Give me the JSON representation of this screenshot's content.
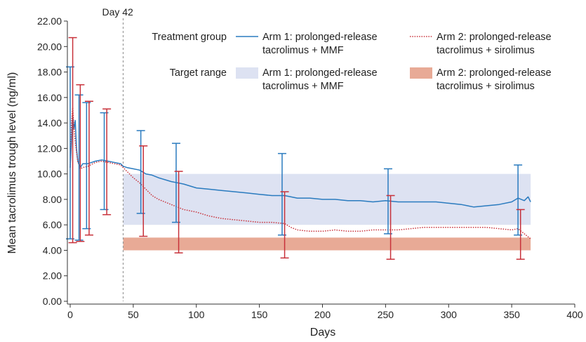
{
  "chart_data": {
    "type": "line",
    "title": "",
    "xlabel": "Days",
    "ylabel": "Mean tacrolimus trough level (ng/ml)",
    "xlim": [
      0,
      400
    ],
    "ylim": [
      0,
      22
    ],
    "x_ticks": [
      "0",
      "50",
      "100",
      "150",
      "200",
      "250",
      "300",
      "350",
      "400"
    ],
    "y_ticks": [
      "0.00",
      "2.00",
      "4.00",
      "6.00",
      "8.00",
      "10.00",
      "12.00",
      "14.00",
      "16.00",
      "18.00",
      "20.00",
      "22.00"
    ],
    "grid": false,
    "annotation": {
      "label": "Day 42",
      "x": 42
    },
    "legend": {
      "placement": "top-right",
      "treatment_title": "Treatment group",
      "target_title": "Target range",
      "arm1_line1": "Arm 1: prolonged-release",
      "arm1_line2": "tacrolimus + MMF",
      "arm2_line1": "Arm 2: prolonged-release",
      "arm2_line2": "tacrolimus + sirolimus"
    },
    "target_ranges": [
      {
        "series": "Arm 1",
        "x_start": 42,
        "x_end": 365,
        "y_low": 6,
        "y_high": 10,
        "color": "#dde2f2"
      },
      {
        "series": "Arm 2",
        "x_start": 42,
        "x_end": 365,
        "y_low": 4,
        "y_high": 5,
        "color": "#e8aa96"
      }
    ],
    "series": [
      {
        "name": "Arm 1: prolonged-release tacrolimus + MMF",
        "color": "#2a7bbf",
        "style": "solid",
        "points": [
          [
            0,
            10.5
          ],
          [
            1,
            12.5
          ],
          [
            2,
            14.5
          ],
          [
            3,
            13.5
          ],
          [
            4,
            14.2
          ],
          [
            5,
            12
          ],
          [
            6,
            11
          ],
          [
            8,
            10.5
          ],
          [
            10,
            10.8
          ],
          [
            14,
            10.8
          ],
          [
            20,
            11
          ],
          [
            25,
            11.1
          ],
          [
            30,
            11
          ],
          [
            35,
            10.9
          ],
          [
            40,
            10.8
          ],
          [
            42,
            10.6
          ],
          [
            45,
            10.5
          ],
          [
            50,
            10.4
          ],
          [
            55,
            10.3
          ],
          [
            60,
            10
          ],
          [
            65,
            9.9
          ],
          [
            70,
            9.7
          ],
          [
            80,
            9.4
          ],
          [
            90,
            9.2
          ],
          [
            100,
            8.9
          ],
          [
            110,
            8.8
          ],
          [
            120,
            8.7
          ],
          [
            130,
            8.6
          ],
          [
            140,
            8.5
          ],
          [
            150,
            8.4
          ],
          [
            160,
            8.3
          ],
          [
            170,
            8.3
          ],
          [
            180,
            8.1
          ],
          [
            190,
            8.1
          ],
          [
            200,
            8
          ],
          [
            210,
            8
          ],
          [
            220,
            7.9
          ],
          [
            230,
            7.9
          ],
          [
            240,
            7.8
          ],
          [
            250,
            7.9
          ],
          [
            260,
            7.8
          ],
          [
            270,
            7.8
          ],
          [
            280,
            7.8
          ],
          [
            290,
            7.8
          ],
          [
            300,
            7.7
          ],
          [
            310,
            7.6
          ],
          [
            315,
            7.5
          ],
          [
            320,
            7.4
          ],
          [
            330,
            7.5
          ],
          [
            340,
            7.6
          ],
          [
            350,
            7.8
          ],
          [
            355,
            8.1
          ],
          [
            360,
            7.9
          ],
          [
            363,
            8.2
          ],
          [
            365,
            7.8
          ]
        ],
        "error_bars": [
          {
            "x": 0,
            "low": 4.9,
            "high": 18.4
          },
          {
            "x": 7,
            "low": 4.8,
            "high": 16.2
          },
          {
            "x": 13,
            "low": 5.7,
            "high": 15.6
          },
          {
            "x": 27,
            "low": 7.2,
            "high": 14.8
          },
          {
            "x": 56,
            "low": 6.9,
            "high": 13.4
          },
          {
            "x": 84,
            "low": 6.2,
            "high": 12.4
          },
          {
            "x": 168,
            "low": 5.2,
            "high": 11.6
          },
          {
            "x": 252,
            "low": 5.3,
            "high": 10.4
          },
          {
            "x": 355,
            "low": 5.2,
            "high": 10.7
          }
        ]
      },
      {
        "name": "Arm 2: prolonged-release tacrolimus + sirolimus",
        "color": "#c8313a",
        "style": "dotted",
        "points": [
          [
            0,
            10.5
          ],
          [
            1,
            14
          ],
          [
            2,
            15.2
          ],
          [
            3,
            13.6
          ],
          [
            4,
            12.5
          ],
          [
            6,
            11
          ],
          [
            8,
            10.4
          ],
          [
            10,
            10.5
          ],
          [
            14,
            10.6
          ],
          [
            20,
            10.9
          ],
          [
            25,
            11
          ],
          [
            30,
            10.9
          ],
          [
            35,
            10.8
          ],
          [
            40,
            10.7
          ],
          [
            42,
            10.5
          ],
          [
            45,
            10.2
          ],
          [
            50,
            9.7
          ],
          [
            55,
            9.3
          ],
          [
            60,
            8.8
          ],
          [
            65,
            8.3
          ],
          [
            70,
            8
          ],
          [
            80,
            7.6
          ],
          [
            90,
            7.2
          ],
          [
            100,
            7
          ],
          [
            110,
            6.7
          ],
          [
            120,
            6.5
          ],
          [
            130,
            6.4
          ],
          [
            140,
            6.3
          ],
          [
            150,
            6.2
          ],
          [
            160,
            6.2
          ],
          [
            170,
            6.1
          ],
          [
            175,
            5.8
          ],
          [
            180,
            5.6
          ],
          [
            190,
            5.5
          ],
          [
            200,
            5.5
          ],
          [
            210,
            5.6
          ],
          [
            220,
            5.5
          ],
          [
            230,
            5.5
          ],
          [
            240,
            5.6
          ],
          [
            250,
            5.6
          ],
          [
            260,
            5.6
          ],
          [
            270,
            5.7
          ],
          [
            280,
            5.8
          ],
          [
            290,
            5.8
          ],
          [
            300,
            5.8
          ],
          [
            310,
            5.8
          ],
          [
            320,
            5.8
          ],
          [
            330,
            5.8
          ],
          [
            340,
            5.7
          ],
          [
            350,
            5.6
          ],
          [
            355,
            5.7
          ],
          [
            360,
            5.3
          ],
          [
            365,
            4.9
          ]
        ],
        "error_bars": [
          {
            "x": 2,
            "low": 4.6,
            "high": 20.7
          },
          {
            "x": 8,
            "low": 4.7,
            "high": 17
          },
          {
            "x": 15,
            "low": 5.2,
            "high": 15.7
          },
          {
            "x": 29,
            "low": 6.8,
            "high": 15.1
          },
          {
            "x": 58,
            "low": 5.1,
            "high": 12.2
          },
          {
            "x": 86,
            "low": 3.8,
            "high": 10.2
          },
          {
            "x": 170,
            "low": 3.4,
            "high": 8.6
          },
          {
            "x": 254,
            "low": 3.3,
            "high": 8.3
          },
          {
            "x": 357,
            "low": 3.3,
            "high": 7.2
          }
        ]
      }
    ]
  }
}
